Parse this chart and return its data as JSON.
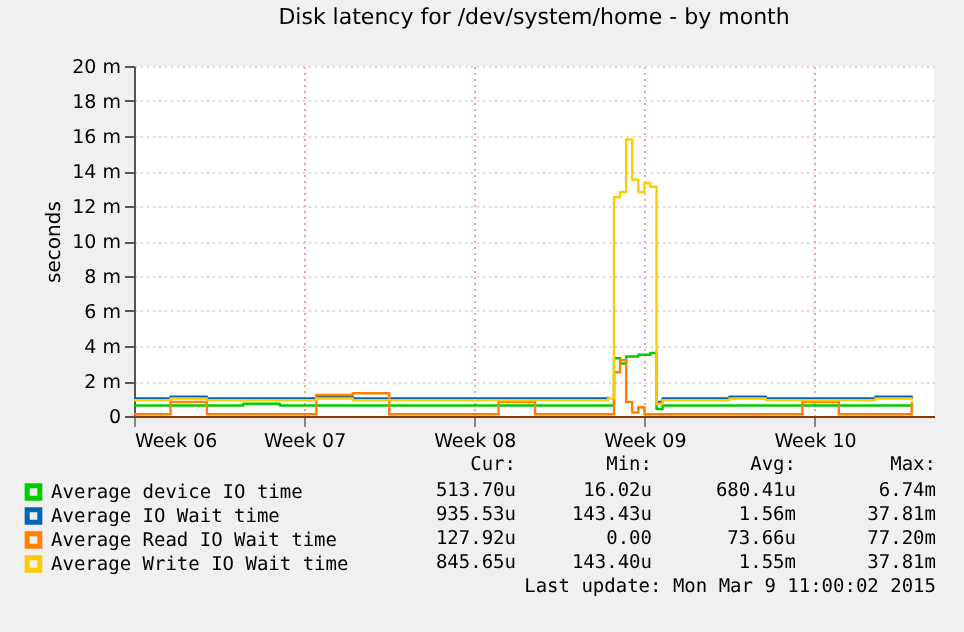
{
  "chart_data": {
    "type": "step",
    "title": "Disk latency for /dev/system/home - by month",
    "ylabel": "seconds",
    "x": [
      "2015-02-02T00:00",
      "2015-02-03T12:00",
      "2015-02-05T00:00",
      "2015-02-06T12:00",
      "2015-02-08T00:00",
      "2015-02-09T12:00",
      "2015-02-11T00:00",
      "2015-02-12T12:00",
      "2015-02-14T00:00",
      "2015-02-15T12:00",
      "2015-02-17T00:00",
      "2015-02-18T12:00",
      "2015-02-20T00:00",
      "2015-02-21T12:00",
      "2015-02-21T18:00",
      "2015-02-22T00:00",
      "2015-02-22T06:00",
      "2015-02-22T12:00",
      "2015-02-22T18:00",
      "2015-02-23T00:00",
      "2015-02-23T06:00",
      "2015-02-23T12:00",
      "2015-02-23T18:00",
      "2015-02-25T00:00",
      "2015-02-26T12:00",
      "2015-02-28T00:00",
      "2015-03-01T12:00",
      "2015-03-03T00:00",
      "2015-03-04T12:00",
      "2015-03-06T00:00"
    ],
    "xlim": [
      "2015-02-02T00:00",
      "2015-03-06T22:00"
    ],
    "xticks": [
      {
        "value": "2015-02-02T00:00",
        "label": "Week 06"
      },
      {
        "value": "2015-02-09T00:00",
        "label": "Week 07"
      },
      {
        "value": "2015-02-16T00:00",
        "label": "Week 08"
      },
      {
        "value": "2015-02-23T00:00",
        "label": "Week 09"
      },
      {
        "value": "2015-03-02T00:00",
        "label": "Week 10"
      }
    ],
    "ylim": [
      0,
      20
    ],
    "yticks": [
      0,
      {
        "value": 2,
        "label": "2 m"
      },
      {
        "value": 4,
        "label": "4 m"
      },
      {
        "value": 6,
        "label": "6 m"
      },
      {
        "value": 8,
        "label": "8 m"
      },
      {
        "value": 10,
        "label": "10 m"
      },
      {
        "value": 12,
        "label": "12 m"
      },
      {
        "value": 14,
        "label": "14 m"
      },
      {
        "value": 16,
        "label": "16 m"
      },
      {
        "value": 18,
        "label": "18 m"
      },
      {
        "value": 20,
        "label": "20 m"
      }
    ],
    "series": [
      {
        "name": "Average device IO time",
        "color": "#00cc00",
        "values": [
          0.6,
          0.6,
          0.6,
          0.7,
          0.6,
          0.6,
          0.6,
          0.6,
          0.6,
          0.6,
          0.6,
          0.6,
          0.6,
          0.6,
          3.3,
          3.0,
          3.4,
          3.4,
          3.5,
          3.5,
          3.6,
          0.4,
          0.6,
          0.6,
          0.6,
          0.6,
          0.6,
          0.6,
          0.6,
          0.6
        ]
      },
      {
        "name": "Average IO Wait time",
        "color": "#0066b3",
        "values": [
          1.0,
          1.1,
          1.0,
          1.0,
          1.0,
          1.1,
          1.0,
          1.0,
          1.0,
          1.0,
          1.0,
          1.0,
          1.0,
          1.1,
          null,
          null,
          null,
          null,
          null,
          null,
          null,
          0.8,
          1.0,
          1.0,
          1.1,
          1.0,
          1.0,
          1.0,
          1.1,
          1.0
        ]
      },
      {
        "name": "Average Read IO Wait time",
        "color": "#ff8000",
        "values": [
          0.1,
          0.8,
          0.1,
          0.1,
          0.1,
          1.2,
          1.3,
          0.1,
          0.1,
          0.1,
          0.8,
          0.1,
          0.1,
          0.1,
          2.5,
          3.2,
          0.8,
          0.2,
          0.5,
          0.1,
          0.1,
          0.1,
          0.1,
          0.1,
          0.1,
          0.1,
          0.8,
          0.1,
          0.1,
          0.8
        ]
      },
      {
        "name": "Average Write IO Wait time",
        "color": "#ffcc00",
        "values": [
          0.9,
          1.0,
          0.9,
          0.9,
          0.9,
          1.0,
          0.9,
          0.9,
          0.9,
          0.9,
          0.9,
          0.9,
          0.9,
          1.0,
          12.5,
          12.8,
          15.8,
          13.5,
          12.8,
          13.3,
          13.1,
          0.7,
          0.9,
          0.9,
          1.0,
          0.9,
          0.9,
          0.9,
          1.0,
          0.9
        ]
      }
    ],
    "grid": true,
    "legend": "bottom",
    "annotations": [
      "Cur:",
      "Min:",
      "Avg:",
      "Max:",
      "513.70u",
      "16.02u",
      "680.41u",
      "6.74m",
      "935.53u",
      "143.43u",
      "1.56m",
      "37.81m",
      "127.92u",
      "0.00",
      "73.66u",
      "77.20m",
      "845.65u",
      "143.40u",
      "1.55m",
      "37.81m",
      "Last update: Mon Mar  9 11:00:02 2015"
    ]
  }
}
